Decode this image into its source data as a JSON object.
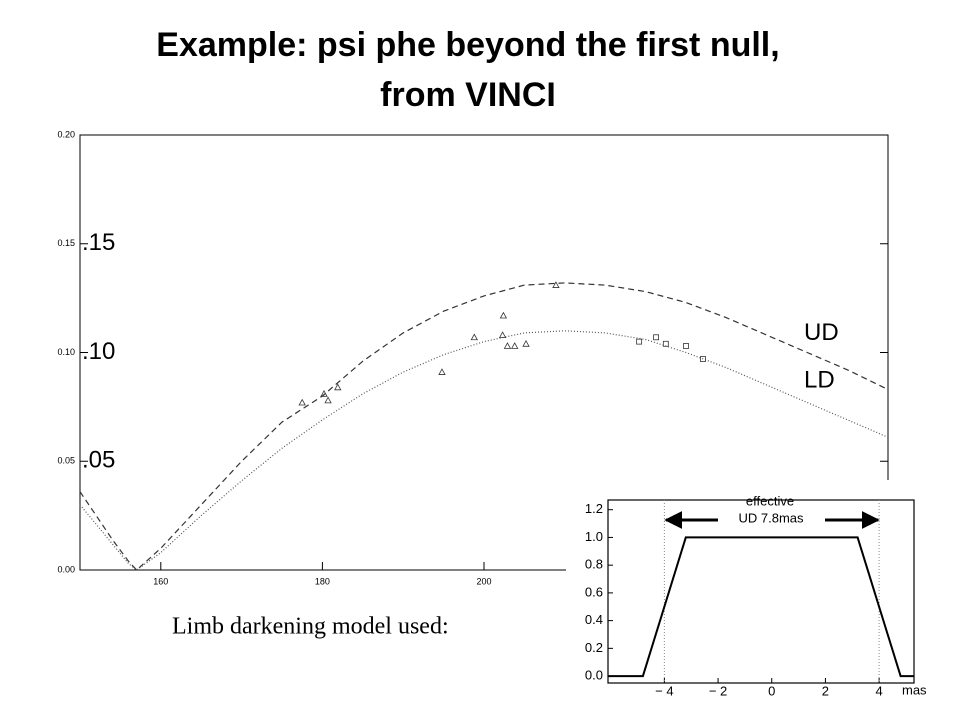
{
  "title": [
    "Example: psi phe beyond the first null,",
    "from VINCI"
  ],
  "caption": "Limb darkening model used:",
  "chart_data": [
    {
      "type": "line",
      "xlim": [
        150,
        250
      ],
      "ylim": [
        0,
        0.2
      ],
      "xticks": [
        160,
        180,
        200
      ],
      "yticks": [
        {
          "value": 0,
          "label": "0.00"
        },
        {
          "value": 0.05,
          "label": "0.05"
        },
        {
          "value": 0.1,
          "label": "0.10"
        },
        {
          "value": 0.15,
          "label": "0.15"
        },
        {
          "value": 0.2,
          "label": "0.20"
        }
      ],
      "yticks_large": [
        {
          "value": 0.05,
          "label": ".05"
        },
        {
          "value": 0.1,
          "label": ".10"
        },
        {
          "value": 0.15,
          "label": ".15"
        }
      ],
      "series": [
        {
          "name": "UD",
          "color": "#333333",
          "style": "dashed",
          "x": [
            150,
            152,
            154,
            156,
            157,
            160,
            165,
            170,
            175,
            180,
            185,
            190,
            195,
            200,
            205,
            210,
            215,
            220,
            225,
            230,
            235,
            240,
            245,
            250
          ],
          "values": [
            0.036,
            0.025,
            0.014,
            0.004,
            0,
            0.01,
            0.03,
            0.05,
            0.068,
            0.08,
            0.096,
            0.109,
            0.119,
            0.126,
            0.131,
            0.132,
            0.131,
            0.128,
            0.123,
            0.116,
            0.108,
            0.1,
            0.092,
            0.083
          ]
        },
        {
          "name": "LD",
          "color": "#555555",
          "style": "dotted",
          "x": [
            150,
            152,
            154,
            156,
            157,
            160,
            165,
            170,
            175,
            180,
            185,
            190,
            195,
            200,
            205,
            210,
            215,
            220,
            225,
            230,
            235,
            240,
            245,
            250
          ],
          "values": [
            0.03,
            0.021,
            0.012,
            0.003,
            0,
            0.008,
            0.025,
            0.041,
            0.056,
            0.069,
            0.081,
            0.091,
            0.099,
            0.105,
            0.109,
            0.11,
            0.109,
            0.106,
            0.1,
            0.093,
            0.085,
            0.077,
            0.069,
            0.061
          ]
        },
        {
          "marker": "triangle",
          "color": "#333333",
          "x": [
            177.5,
            180.2,
            180.7,
            181.9,
            194.8,
            198.8,
            202.4,
            202.3,
            202.9,
            203.8,
            205.2,
            208.9
          ],
          "values": [
            0.077,
            0.081,
            0.078,
            0.084,
            0.091,
            0.107,
            0.117,
            0.108,
            0.103,
            0.103,
            0.104,
            0.131
          ]
        },
        {
          "marker": "square",
          "color": "#333333",
          "x": [
            219.2,
            221.3,
            222.5,
            225.0,
            227.1
          ],
          "values": [
            0.105,
            0.107,
            0.104,
            0.103,
            0.097
          ]
        }
      ]
    },
    {
      "type": "line",
      "xlim": [
        -6.1,
        5.3
      ],
      "ylim": [
        -0.05,
        1.27
      ],
      "xticks": [
        {
          "value": -4,
          "label": "− 4"
        },
        {
          "value": -2,
          "label": "− 2"
        },
        0,
        2,
        4
      ],
      "yticks": [
        {
          "value": 0,
          "label": "0.0"
        },
        0.2,
        0.4,
        0.6,
        0.8,
        {
          "value": 1,
          "label": "1.0"
        },
        1.2
      ],
      "x_label": "mas",
      "vlines": [
        -4,
        4
      ],
      "annotations": [
        "effective",
        "UD 7.8mas"
      ],
      "series": [
        {
          "color": "#000000",
          "style": "solid",
          "x": [
            -6.1,
            -4.8,
            -3.2,
            3.2,
            4.8,
            5.3
          ],
          "values": [
            0,
            0,
            1,
            1,
            0,
            0
          ]
        }
      ]
    }
  ]
}
